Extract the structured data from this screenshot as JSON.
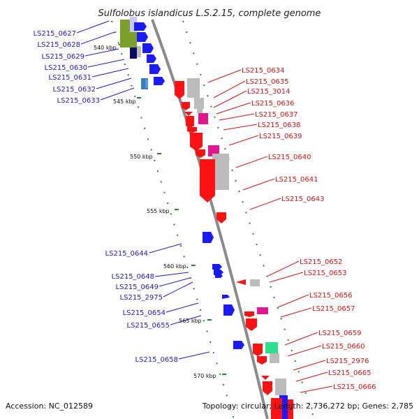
{
  "title": "Sulfolobus islandicus L.S.2.15, complete genome",
  "accession": "Accession: NC_012589",
  "topology": "Topology: circular; Length: 2,736,272 bp; Genes: 2,785",
  "scale_labels": [
    "540 kbp",
    "545 kbp",
    "550 kbp",
    "555 kbp",
    "560 kbp",
    "565 kbp",
    "570 kbp"
  ],
  "genes_left": [
    "LS215_0627",
    "LS215_0628",
    "LS215_0629",
    "LS215_0630",
    "LS215_0631",
    "LS215_0632",
    "LS215_0633",
    "LS215_0644",
    "LS215_0648",
    "LS215_0649",
    "LS215_2975",
    "LS215_0654",
    "LS215_0655",
    "LS215_0658"
  ],
  "genes_right": [
    "LS215_0634",
    "LS215_0635",
    "LS215_3014",
    "LS215_0636",
    "LS215_0637",
    "LS215_0638",
    "LS215_0639",
    "LS215_0640",
    "LS215_0641",
    "LS215_0643",
    "LS215_0652",
    "LS215_0653",
    "LS215_0656",
    "LS215_0657",
    "LS215_0659",
    "LS215_0660",
    "LS215_2976",
    "LS215_0665",
    "LS215_0666"
  ],
  "colors": {
    "forward": "#1a1aff",
    "reverse": "#ff1111",
    "label_blue": "#1a1acc",
    "label_red": "#dd1111",
    "backbone": "#888888",
    "ruler": "#1e8c1e"
  }
}
